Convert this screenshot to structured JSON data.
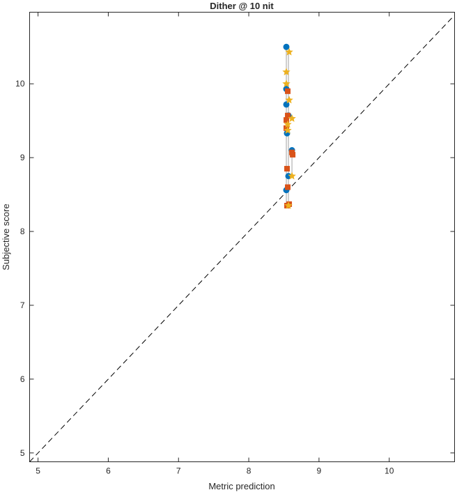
{
  "chart_data": {
    "type": "scatter",
    "title": "Dither @ 10 nit",
    "xlabel": "Metric prediction",
    "ylabel": "Subjective score",
    "xlim": [
      4.88,
      10.93
    ],
    "ylim": [
      4.88,
      10.97
    ],
    "xticks": [
      5,
      6,
      7,
      8,
      9,
      10
    ],
    "yticks": [
      5,
      6,
      7,
      8,
      9,
      10
    ],
    "grid": false,
    "reference_line": {
      "style": "dashed",
      "color": "#000000",
      "from": [
        4.88,
        4.88
      ],
      "to": [
        10.93,
        10.93
      ]
    },
    "connectors": [
      {
        "x": 8.535,
        "y": [
          8.35,
          10.5
        ]
      },
      {
        "x": 8.565,
        "y": [
          8.35,
          10.43
        ]
      },
      {
        "x": 8.615,
        "y": [
          8.75,
          9.1
        ]
      }
    ],
    "series": [
      {
        "marker": "circle",
        "color": "#0072BD",
        "points": [
          [
            8.535,
            10.5
          ],
          [
            8.535,
            9.93
          ],
          [
            8.535,
            9.72
          ],
          [
            8.565,
            9.57
          ],
          [
            8.545,
            9.33
          ],
          [
            8.615,
            9.1
          ],
          [
            8.565,
            8.75
          ],
          [
            8.535,
            8.56
          ]
        ]
      },
      {
        "marker": "square",
        "color": "#D95319",
        "points": [
          [
            8.555,
            9.9
          ],
          [
            8.555,
            9.57
          ],
          [
            8.535,
            9.51
          ],
          [
            8.535,
            9.4
          ],
          [
            8.615,
            9.07
          ],
          [
            8.625,
            9.04
          ],
          [
            8.545,
            8.85
          ],
          [
            8.555,
            8.6
          ],
          [
            8.545,
            8.35
          ],
          [
            8.575,
            8.37
          ]
        ]
      },
      {
        "marker": "star",
        "color": "#EDB120",
        "points": [
          [
            8.575,
            10.43
          ],
          [
            8.535,
            10.16
          ],
          [
            8.535,
            10.0
          ],
          [
            8.575,
            9.78
          ],
          [
            8.615,
            9.53
          ],
          [
            8.555,
            9.45
          ],
          [
            8.555,
            9.37
          ],
          [
            8.615,
            8.75
          ],
          [
            8.565,
            8.35
          ]
        ]
      }
    ]
  }
}
